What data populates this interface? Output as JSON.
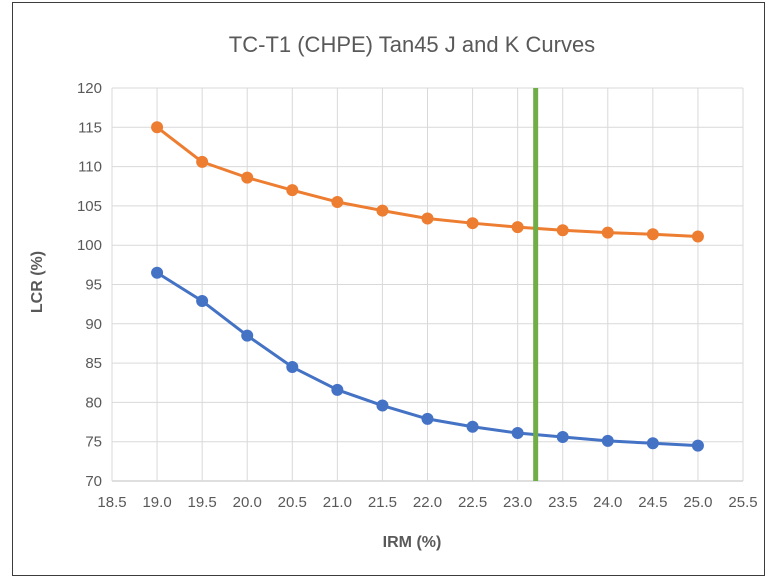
{
  "chart_data": {
    "type": "line",
    "title": "TC-T1 (CHPE) Tan45 J and K Curves",
    "xlabel": "IRM (%)",
    "ylabel": "LCR (%)",
    "xlim": [
      18.5,
      25.5
    ],
    "ylim": [
      70,
      120
    ],
    "x_ticks": [
      "18.5",
      "19.0",
      "19.5",
      "20.0",
      "20.5",
      "21.0",
      "21.5",
      "22.0",
      "22.5",
      "23.0",
      "23.5",
      "24.0",
      "24.5",
      "25.0",
      "25.5"
    ],
    "y_ticks": [
      "70",
      "75",
      "80",
      "85",
      "90",
      "95",
      "100",
      "105",
      "110",
      "115",
      "120"
    ],
    "grid": true,
    "legend": "none",
    "x": [
      19.0,
      19.5,
      20.0,
      20.5,
      21.0,
      21.5,
      22.0,
      22.5,
      23.0,
      23.5,
      24.0,
      24.5,
      25.0
    ],
    "series": [
      {
        "color": "#ED7D31",
        "values": [
          115.0,
          110.6,
          108.6,
          107.0,
          105.5,
          104.4,
          103.4,
          102.8,
          102.3,
          101.9,
          101.6,
          101.4,
          101.1
        ]
      },
      {
        "color": "#4472C4",
        "values": [
          96.5,
          92.9,
          88.5,
          84.5,
          81.6,
          79.6,
          77.9,
          76.9,
          76.1,
          75.6,
          75.1,
          74.8,
          74.5
        ]
      }
    ],
    "vline": {
      "x": 23.2,
      "color": "#70AD47"
    },
    "grid_color": "#d9d9d9",
    "axis_color": "#bfbfbf"
  }
}
